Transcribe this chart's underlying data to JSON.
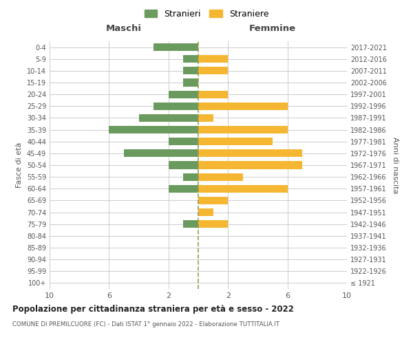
{
  "age_groups": [
    "100+",
    "95-99",
    "90-94",
    "85-89",
    "80-84",
    "75-79",
    "70-74",
    "65-69",
    "60-64",
    "55-59",
    "50-54",
    "45-49",
    "40-44",
    "35-39",
    "30-34",
    "25-29",
    "20-24",
    "15-19",
    "10-14",
    "5-9",
    "0-4"
  ],
  "birth_years": [
    "≤ 1921",
    "1922-1926",
    "1927-1931",
    "1932-1936",
    "1937-1941",
    "1942-1946",
    "1947-1951",
    "1952-1956",
    "1957-1961",
    "1962-1966",
    "1967-1971",
    "1972-1976",
    "1977-1981",
    "1982-1986",
    "1987-1991",
    "1992-1996",
    "1997-2001",
    "2002-2006",
    "2007-2011",
    "2012-2016",
    "2017-2021"
  ],
  "maschi": [
    0,
    0,
    0,
    0,
    0,
    1,
    0,
    0,
    2,
    1,
    2,
    5,
    2,
    6,
    4,
    3,
    2,
    1,
    1,
    1,
    3
  ],
  "femmine": [
    0,
    0,
    0,
    0,
    0,
    2,
    1,
    2,
    6,
    3,
    7,
    7,
    5,
    6,
    1,
    6,
    2,
    0,
    2,
    2,
    0
  ],
  "color_maschi": "#6b9a5e",
  "color_femmine": "#f5b731",
  "color_grid": "#cccccc",
  "color_dashed_line": "#9a9a4e",
  "title": "Popolazione per cittadinanza straniera per età e sesso - 2022",
  "subtitle": "COMUNE DI PREMILCUORE (FC) - Dati ISTAT 1° gennaio 2022 - Elaborazione TUTTITALIA.IT",
  "ylabel_left": "Fasce di età",
  "ylabel_right": "Anni di nascita",
  "xlabel_maschi": "Maschi",
  "xlabel_femmine": "Femmine",
  "legend_maschi": "Stranieri",
  "legend_femmine": "Straniere",
  "xlim": 10,
  "background_color": "#ffffff",
  "bar_height": 0.65
}
